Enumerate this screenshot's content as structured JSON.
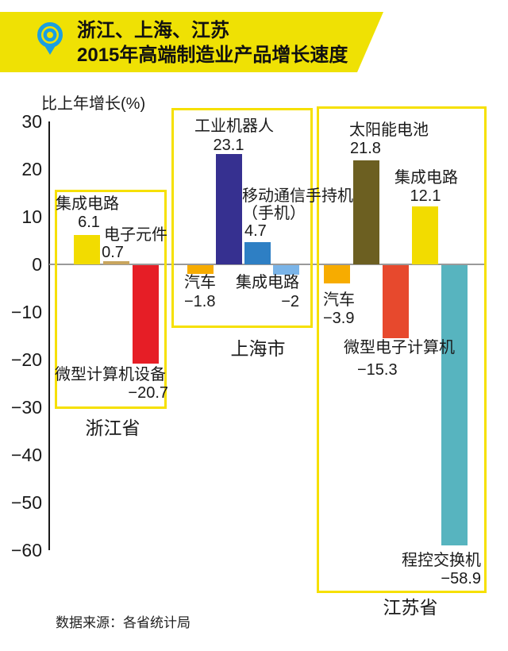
{
  "header": {
    "title_line1": "浙江、上海、江苏",
    "title_line2": "2015年高端制造业产品增长速度",
    "banner_color": "#efe104",
    "pin_icon": "location-pin",
    "pin_color": "#1b9fe0"
  },
  "chart_data": {
    "type": "bar",
    "title": "浙江、上海、江苏 2015年高端制造业产品增长速度",
    "ylabel": "比上年增长(%)",
    "xlabel": "",
    "ylim": [
      -60,
      30
    ],
    "yticks": [
      30,
      20,
      10,
      0,
      -10,
      -20,
      -30,
      -40,
      -50,
      -60
    ],
    "grid": false,
    "legend": "none",
    "axis_color": "#1a1a1a",
    "zero_line_color": "#9a9a9a",
    "group_outline_color": "#f6e000",
    "groups": [
      {
        "name": "浙江省",
        "bars": [
          {
            "label_lines": [
              "集成电路"
            ],
            "value": 6.1,
            "value_label": "6.1",
            "color": "#f2dc00"
          },
          {
            "label_lines": [
              "电子元件"
            ],
            "value": 0.7,
            "value_label": "0.7",
            "color": "#c8a55e"
          },
          {
            "label_lines": [
              "微型计算机设备"
            ],
            "value": -20.7,
            "value_label": "−20.7",
            "color": "#e61e26"
          }
        ]
      },
      {
        "name": "上海市",
        "bars": [
          {
            "label_lines": [
              "汽车"
            ],
            "value": -1.8,
            "value_label": "−1.8",
            "color": "#f7ac00"
          },
          {
            "label_lines": [
              "工业机器人"
            ],
            "value": 23.1,
            "value_label": "23.1",
            "color": "#363090"
          },
          {
            "label_lines": [
              "移动通信手持机",
              "（手机）"
            ],
            "value": 4.7,
            "value_label": "4.7",
            "color": "#2e7fc4"
          },
          {
            "label_lines": [
              "集成电路"
            ],
            "value": -2,
            "value_label": "−2",
            "color": "#7ab4e8"
          }
        ]
      },
      {
        "name": "江苏省",
        "bars": [
          {
            "label_lines": [
              "汽车"
            ],
            "value": -3.9,
            "value_label": "−3.9",
            "color": "#f7ac00"
          },
          {
            "label_lines": [
              "太阳能电池"
            ],
            "value": 21.8,
            "value_label": "21.8",
            "color": "#6c5f21"
          },
          {
            "label_lines": [
              "微型电子计算机"
            ],
            "value": -15.3,
            "value_label": "−15.3",
            "color": "#e7492d"
          },
          {
            "label_lines": [
              "集成电路"
            ],
            "value": 12.1,
            "value_label": "12.1",
            "color": "#f2dc00"
          },
          {
            "label_lines": [
              "程控交换机"
            ],
            "value": -58.9,
            "value_label": "−58.9",
            "color": "#57b4bf"
          }
        ]
      }
    ]
  },
  "footer": {
    "source": "数据来源：各省统计局"
  }
}
